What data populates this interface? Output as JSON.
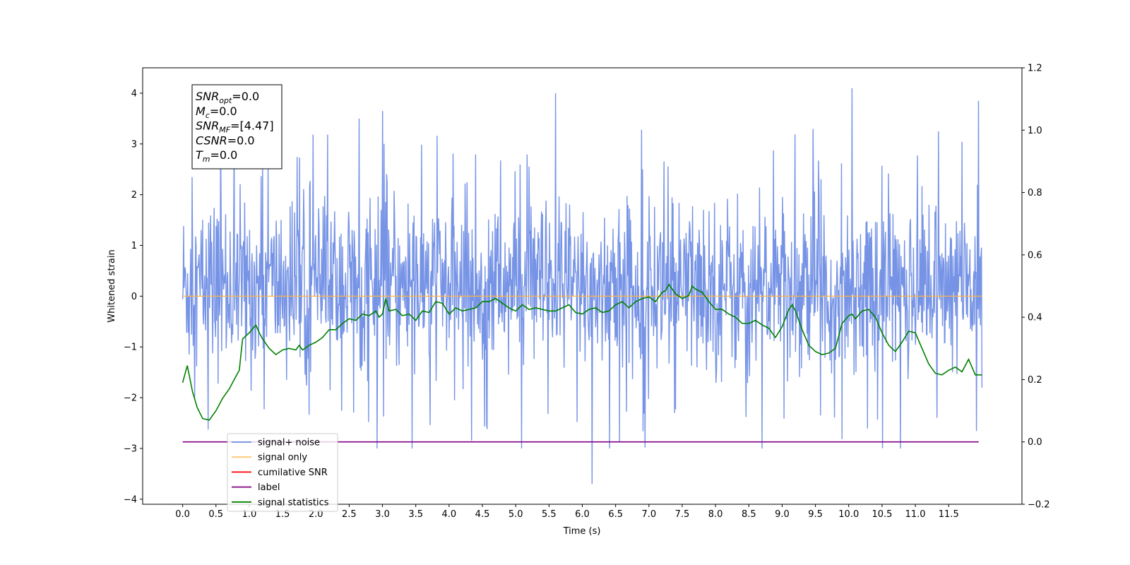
{
  "chart_data": {
    "type": "line",
    "xlabel": "Time (s)",
    "ylabel": "Whitened strain",
    "xlim": [
      -0.6,
      12.6
    ],
    "ylim": [
      -4.1,
      4.5
    ],
    "y2lim": [
      -0.2,
      1.2
    ],
    "x_ticks": [
      0.0,
      0.5,
      1.0,
      1.5,
      2.0,
      2.5,
      3.0,
      3.5,
      4.0,
      4.5,
      5.0,
      5.5,
      6.0,
      6.5,
      7.0,
      7.5,
      8.0,
      8.5,
      9.0,
      9.5,
      10.0,
      10.5,
      11.0,
      11.5
    ],
    "x_tick_labels": [
      "0.0",
      "0.5",
      "1.0",
      "1.5",
      "2.0",
      "2.5",
      "3.0",
      "3.5",
      "4.0",
      "4.5",
      "5.0",
      "5.5",
      "6.0",
      "6.5",
      "7.0",
      "7.5",
      "8.0",
      "8.5",
      "9.0",
      "9.5",
      "10.0",
      "10.5",
      "11.0",
      "11.5"
    ],
    "y_ticks": [
      -4,
      -3,
      -2,
      -1,
      0,
      1,
      2,
      3,
      4
    ],
    "y_tick_labels": [
      "−4",
      "−3",
      "−2",
      "−1",
      "0",
      "1",
      "2",
      "3",
      "4"
    ],
    "y2_ticks": [
      -0.2,
      0.0,
      0.2,
      0.4,
      0.6,
      0.8,
      1.0,
      1.2
    ],
    "y2_tick_labels": [
      "−0.2",
      "0.0",
      "0.2",
      "0.4",
      "0.6",
      "0.8",
      "1.0",
      "1.2"
    ],
    "legend_placement": "lower-left",
    "grid": false,
    "series": [
      {
        "name": "signal+ noise",
        "color": "#6f8de5",
        "axis": "left",
        "description": "dense noise trace, roughly -2.5 to 2.5 with spikes reaching about 4.1 and -3.7",
        "peaks_x": [
          0.57,
          2.65,
          3.0,
          5.6,
          6.15,
          10.05,
          11.95
        ],
        "peaks_y": [
          3.2,
          3.5,
          3.65,
          4.0,
          -3.7,
          4.1,
          3.85
        ]
      },
      {
        "name": "signal only",
        "color": "#ffb347",
        "axis": "left",
        "x": [
          0.0,
          12.0
        ],
        "y": [
          0.0,
          0.0
        ]
      },
      {
        "name": "cumilative SNR",
        "color": "#ff0000",
        "axis": "right",
        "x": [],
        "y": []
      },
      {
        "name": "label",
        "color": "#800080",
        "axis": "right",
        "x": [
          0.0,
          11.95
        ],
        "y": [
          0.0,
          0.0
        ]
      },
      {
        "name": "signal statistics",
        "color": "#008000",
        "axis": "right",
        "x": [
          0.0,
          0.07,
          0.15,
          0.22,
          0.3,
          0.4,
          0.5,
          0.6,
          0.7,
          0.8,
          0.85,
          0.9,
          1.0,
          1.1,
          1.15,
          1.2,
          1.3,
          1.4,
          1.5,
          1.6,
          1.7,
          1.75,
          1.8,
          1.9,
          2.0,
          2.1,
          2.2,
          2.3,
          2.4,
          2.5,
          2.6,
          2.7,
          2.8,
          2.9,
          2.95,
          3.0,
          3.05,
          3.1,
          3.2,
          3.3,
          3.4,
          3.5,
          3.6,
          3.7,
          3.8,
          3.9,
          4.0,
          4.1,
          4.2,
          4.3,
          4.4,
          4.5,
          4.6,
          4.7,
          4.8,
          4.9,
          5.0,
          5.1,
          5.2,
          5.3,
          5.4,
          5.5,
          5.6,
          5.7,
          5.8,
          5.9,
          6.0,
          6.1,
          6.2,
          6.3,
          6.4,
          6.5,
          6.6,
          6.7,
          6.8,
          6.9,
          7.0,
          7.1,
          7.2,
          7.25,
          7.3,
          7.4,
          7.5,
          7.6,
          7.65,
          7.7,
          7.8,
          7.9,
          8.0,
          8.1,
          8.2,
          8.3,
          8.4,
          8.5,
          8.6,
          8.7,
          8.8,
          8.9,
          9.0,
          9.1,
          9.15,
          9.2,
          9.3,
          9.4,
          9.5,
          9.6,
          9.7,
          9.8,
          9.9,
          10.0,
          10.05,
          10.1,
          10.2,
          10.3,
          10.4,
          10.5,
          10.6,
          10.7,
          10.75,
          10.8,
          10.9,
          11.0,
          11.1,
          11.2,
          11.3,
          11.4,
          11.5,
          11.6,
          11.7,
          11.8,
          11.9,
          12.0
        ],
        "y": [
          0.19,
          0.245,
          0.16,
          0.11,
          0.075,
          0.07,
          0.1,
          0.14,
          0.17,
          0.21,
          0.23,
          0.33,
          0.35,
          0.375,
          0.35,
          0.33,
          0.3,
          0.28,
          0.295,
          0.3,
          0.295,
          0.31,
          0.295,
          0.31,
          0.32,
          0.335,
          0.36,
          0.36,
          0.38,
          0.395,
          0.39,
          0.41,
          0.405,
          0.42,
          0.4,
          0.41,
          0.46,
          0.42,
          0.425,
          0.405,
          0.41,
          0.39,
          0.42,
          0.415,
          0.45,
          0.445,
          0.41,
          0.43,
          0.42,
          0.425,
          0.43,
          0.45,
          0.45,
          0.46,
          0.445,
          0.43,
          0.42,
          0.44,
          0.425,
          0.43,
          0.425,
          0.42,
          0.42,
          0.43,
          0.44,
          0.415,
          0.41,
          0.425,
          0.43,
          0.415,
          0.42,
          0.44,
          0.45,
          0.43,
          0.45,
          0.46,
          0.465,
          0.45,
          0.48,
          0.485,
          0.505,
          0.475,
          0.46,
          0.47,
          0.5,
          0.49,
          0.48,
          0.45,
          0.425,
          0.425,
          0.41,
          0.4,
          0.38,
          0.38,
          0.39,
          0.375,
          0.365,
          0.335,
          0.37,
          0.425,
          0.44,
          0.42,
          0.36,
          0.31,
          0.29,
          0.28,
          0.285,
          0.3,
          0.38,
          0.405,
          0.41,
          0.395,
          0.42,
          0.425,
          0.4,
          0.35,
          0.31,
          0.29,
          0.305,
          0.32,
          0.355,
          0.35,
          0.3,
          0.25,
          0.22,
          0.215,
          0.23,
          0.24,
          0.225,
          0.265,
          0.215,
          0.215
        ]
      }
    ],
    "annotation": {
      "lines": [
        {
          "main": "SNR",
          "sub": "opt",
          "value": "=0.0"
        },
        {
          "main": "M",
          "sub": "c",
          "value": "=0.0"
        },
        {
          "main": "SNR",
          "sub": "MF",
          "value": "=[4.47]"
        },
        {
          "main": "CSNR",
          "sub": "",
          "value": "=0.0"
        },
        {
          "main": "T",
          "sub": "m",
          "value": "=0.0"
        }
      ]
    }
  }
}
